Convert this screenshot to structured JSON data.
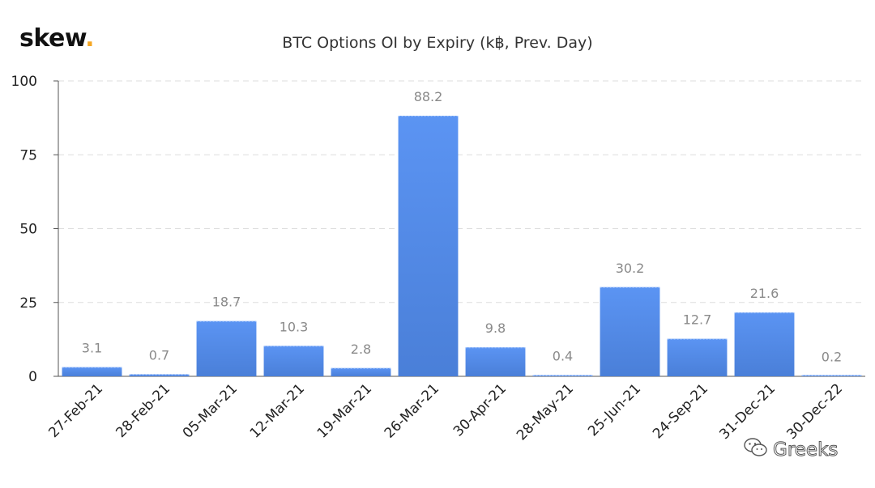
{
  "brand": {
    "logo_text": "skew",
    "logo_dot": "."
  },
  "watermark": {
    "text": "Greeks",
    "icon": "wechat-icon"
  },
  "colors": {
    "bar_top": "#5b94f3",
    "bar_bottom": "#4a7fd8",
    "label": "#8a8a8a",
    "axis_text": "#222222",
    "grid": "#dddddd",
    "logo_dot": "#f5a623"
  },
  "chart_data": {
    "type": "bar",
    "title": "BTC Options OI by Expiry (k฿, Prev. Day)",
    "xlabel": "",
    "ylabel": "",
    "ylim": [
      0,
      100
    ],
    "yticks": [
      0,
      25,
      50,
      75,
      100
    ],
    "grid": true,
    "categories": [
      "27-Feb-21",
      "28-Feb-21",
      "05-Mar-21",
      "12-Mar-21",
      "19-Mar-21",
      "26-Mar-21",
      "30-Apr-21",
      "28-May-21",
      "25-Jun-21",
      "24-Sep-21",
      "31-Dec-21",
      "30-Dec-22"
    ],
    "values": [
      3.1,
      0.7,
      18.7,
      10.3,
      2.8,
      88.2,
      9.8,
      0.4,
      30.2,
      12.7,
      21.6,
      0.2
    ],
    "data_labels": [
      "3.1",
      "0.7",
      "18.7",
      "10.3",
      "2.8",
      "88.2",
      "9.8",
      "0.4",
      "30.2",
      "12.7",
      "21.6",
      "0.2"
    ]
  }
}
